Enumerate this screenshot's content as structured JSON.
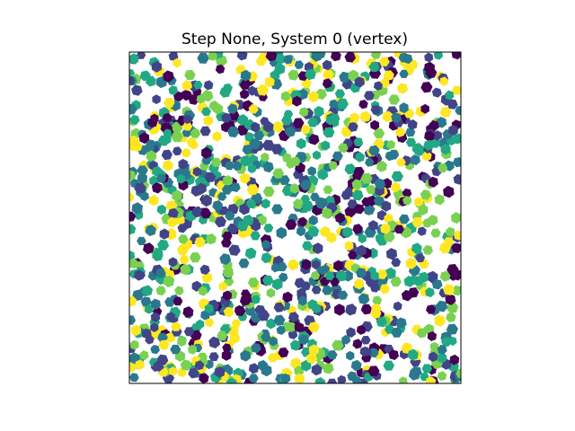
{
  "chart_data": {
    "type": "scatter",
    "title": "Step None, System 0 (vertex)",
    "xlabel": "",
    "ylabel": "",
    "axes_visible": false,
    "grid": false,
    "legend": "none",
    "marker": "hexagon",
    "colormap": "viridis",
    "colormap_stops": [
      "#440154",
      "#414487",
      "#2a788e",
      "#22a884",
      "#7ad151",
      "#fde725"
    ],
    "frame_color": "#000000",
    "background": "#ffffff",
    "xlim": [
      0,
      1
    ],
    "ylim": [
      0,
      1
    ],
    "particle_count": 1150,
    "note": "particle positions and colors are a dense random-looking packing; values approximated procedurally"
  }
}
